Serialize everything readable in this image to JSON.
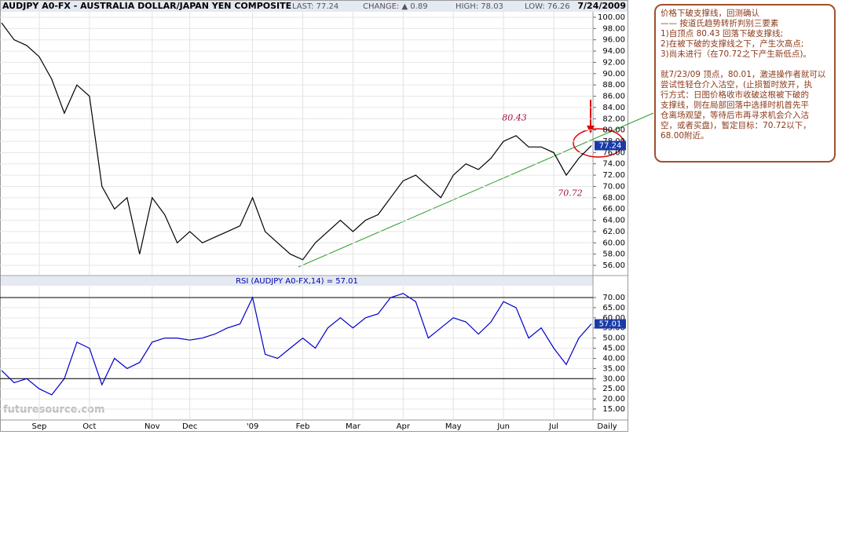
{
  "chart_data": [
    {
      "type": "line",
      "title": "AUDJPY A0-FX - AUSTRALIA DOLLAR/JAPAN YEN COMPOSITE",
      "stats": [
        "LAST: 77.24",
        "CHANGE: ▲ 0.89",
        "HIGH: 78.03",
        "LOW: 76.26"
      ],
      "date": "7/24/2009",
      "categories": [
        null,
        null,
        null,
        "Sep",
        null,
        null,
        null,
        "Oct",
        null,
        null,
        null,
        null,
        "Nov",
        null,
        null,
        "Dec",
        null,
        null,
        null,
        null,
        "'09",
        null,
        null,
        null,
        "Feb",
        null,
        null,
        null,
        "Mar",
        null,
        null,
        null,
        "Apr",
        null,
        null,
        null,
        "May",
        null,
        null,
        null,
        "Jun",
        null,
        null,
        null,
        "Jul",
        null,
        null,
        null
      ],
      "x_label": "Daily",
      "series": [
        {
          "name": "AUDJPY",
          "color": "#000000",
          "values": [
            99,
            96,
            95,
            93,
            89,
            83,
            88,
            86,
            70,
            66,
            68,
            58,
            68,
            65,
            60,
            62,
            60,
            61,
            62,
            63,
            68,
            62,
            60,
            58,
            57,
            60,
            62,
            64,
            62,
            64,
            65,
            68,
            71,
            72,
            70,
            68,
            72,
            74,
            73,
            75,
            78,
            79,
            77,
            77,
            76,
            72,
            75,
            77.24
          ]
        }
      ],
      "ylim": [
        54.33,
        100.97
      ],
      "yticks": [
        {
          "value": 56,
          "label": "56.00"
        },
        {
          "value": 58,
          "label": "58.00"
        },
        {
          "value": 60,
          "label": "60.00"
        },
        {
          "value": 62,
          "label": "62.00"
        },
        {
          "value": 64,
          "label": "64.00"
        },
        {
          "value": 66,
          "label": "66.00"
        },
        {
          "value": 68,
          "label": "68.00"
        },
        {
          "value": 70,
          "label": "70.00"
        },
        {
          "value": 72,
          "label": "72.00"
        },
        {
          "value": 74,
          "label": "74.00"
        },
        {
          "value": 76,
          "label": "76.00"
        },
        {
          "value": 78,
          "label": "78.00"
        },
        {
          "value": 80,
          "label": "80.00"
        },
        {
          "value": 82,
          "label": "82.00"
        },
        {
          "value": 84,
          "label": "84.00"
        },
        {
          "value": 86,
          "label": "86.00"
        },
        {
          "value": 88,
          "label": "88.00"
        },
        {
          "value": 90,
          "label": "90.00"
        },
        {
          "value": 92,
          "label": "92.00"
        },
        {
          "value": 94,
          "label": "94.00"
        },
        {
          "value": 96,
          "label": "96.00"
        },
        {
          "value": 98,
          "label": "98.00"
        },
        {
          "value": 100,
          "label": "100.00"
        }
      ],
      "grid": true,
      "annotations": [
        {
          "text": "80.43",
          "value": 80.43
        },
        {
          "text": "70.72",
          "value": 70.72
        }
      ],
      "watermark": "futuresource.com"
    },
    {
      "type": "line",
      "title": "RSI (AUDJPY A0-FX,14) = 57.01",
      "series": [
        {
          "name": "RSI",
          "color": "#0000cc",
          "values": [
            34,
            28,
            30,
            25,
            22,
            30,
            48,
            45,
            27,
            40,
            35,
            38,
            48,
            50,
            50,
            49,
            50,
            52,
            55,
            57,
            70,
            42,
            40,
            45,
            50,
            45,
            55,
            60,
            55,
            60,
            62,
            70,
            72,
            68,
            50,
            55,
            60,
            58,
            52,
            58,
            68,
            65,
            50,
            55,
            45,
            37,
            50,
            57.01
          ]
        }
      ],
      "ylim": [
        9.58,
        75.42
      ],
      "yticks": [
        {
          "value": 15,
          "label": "15.00"
        },
        {
          "value": 20,
          "label": "20.00"
        },
        {
          "value": 25,
          "label": "25.00"
        },
        {
          "value": 30,
          "label": "30.00"
        },
        {
          "value": 35,
          "label": "35.00"
        },
        {
          "value": 40,
          "label": "40.00"
        },
        {
          "value": 45,
          "label": "45.00"
        },
        {
          "value": 50,
          "label": "50.00"
        },
        {
          "value": 55,
          "label": "55.00"
        },
        {
          "value": 60,
          "label": "60.00"
        },
        {
          "value": 65,
          "label": "65.00"
        },
        {
          "value": 70,
          "label": "70.00"
        }
      ],
      "reference_lines": [
        30,
        70
      ],
      "grid": true
    }
  ],
  "note": {
    "lines": [
      "价格下破支撑线，回测确认",
      "—— 按道氏趋势转折判别三要素",
      "1)自顶点 80.43 回落下破支撑线;",
      "2)在被下破的支撑线之下，产生次高点;",
      "3)尚未进行（在70.72之下产生新低点)。"
    ],
    "paragraph": [
      "就7/23/09 顶点，80.01，激进操作者就可以",
      "尝试性轻仓介入沽空，(止损暂时放开，执",
      "行方式：日图价格收市收破这根被下破的",
      "支撑线，则在局部回落中选择时机首先平",
      "仓离场观望，等待后市再寻求机会介入沽",
      "空，或者买盘)，暂定目标：70.72以下，",
      "68.00附近。"
    ]
  }
}
